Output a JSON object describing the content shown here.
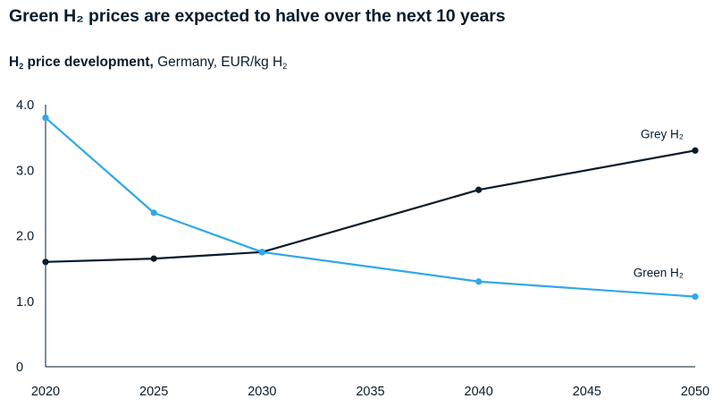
{
  "header": {
    "title": "Green H₂ prices are expected to halve over the next 10 years"
  },
  "subtitle": {
    "bold_h": "H",
    "bold_sub": "2",
    "bold_rest": " price development,",
    "rest_a": " Germany, EUR/kg H",
    "rest_sub": "2"
  },
  "chart_data": {
    "type": "line",
    "title": "Green H₂ prices are expected to halve over the next 10 years",
    "subtitle": "H2 price development, Germany, EUR/kg H2",
    "xlabel": "",
    "ylabel": "",
    "xlim": [
      2020,
      2050
    ],
    "ylim": [
      0,
      4.0
    ],
    "x_ticks": [
      2020,
      2025,
      2030,
      2035,
      2040,
      2045,
      2050
    ],
    "x_tick_labels": [
      "2020",
      "2025",
      "2030",
      "2035",
      "2040",
      "2045",
      "2050"
    ],
    "y_ticks": [
      0,
      1.0,
      2.0,
      3.0,
      4.0
    ],
    "y_tick_labels": [
      "0",
      "1.0",
      "2.0",
      "3.0",
      "4.0"
    ],
    "grid": false,
    "legend": "inline labels at line ends",
    "series": [
      {
        "name": "Grey H₂",
        "color": "#051c2c",
        "x": [
          2020,
          2025,
          2030,
          2040,
          2050
        ],
        "y": [
          1.6,
          1.65,
          1.75,
          2.7,
          3.3
        ]
      },
      {
        "name": "Green H₂",
        "color": "#2fa8e8",
        "x": [
          2020,
          2025,
          2030,
          2040,
          2050
        ],
        "y": [
          3.8,
          2.35,
          1.75,
          1.3,
          1.07
        ]
      }
    ]
  }
}
